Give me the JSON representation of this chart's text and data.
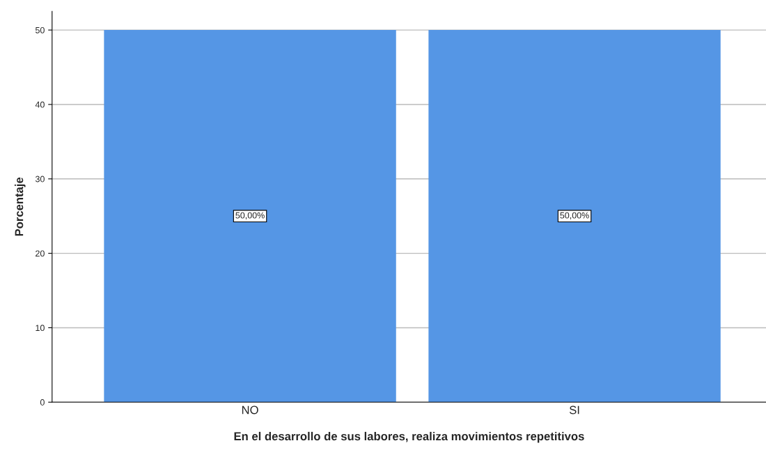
{
  "chart_data": {
    "type": "bar",
    "xlabel": "En el desarrollo de sus labores, realiza movimientos repetitivos",
    "ylabel": "Porcentaje",
    "categories": [
      "NO",
      "SI"
    ],
    "values": [
      50,
      50
    ],
    "value_labels": [
      "50,00%",
      "50,00%"
    ],
    "color": "#5596e5",
    "ylim": [
      0,
      52.5
    ],
    "yticks": [
      0,
      10,
      20,
      30,
      40,
      50
    ],
    "grid": "y"
  }
}
